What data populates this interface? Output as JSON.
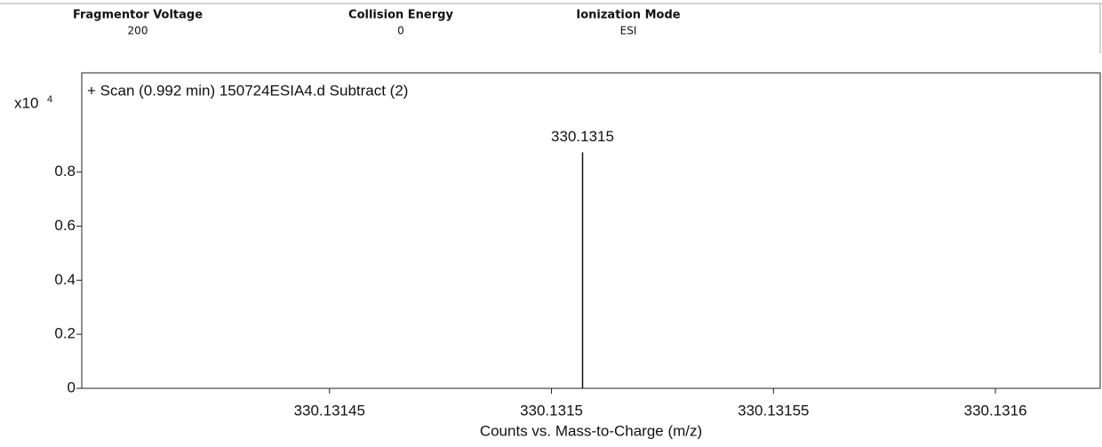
{
  "header": {
    "columns": [
      {
        "name": "Fragmentor Voltage",
        "value": "200"
      },
      {
        "name": "Collision Energy",
        "value": "0"
      },
      {
        "name": "Ionization Mode",
        "value": "ESI"
      }
    ]
  },
  "chart_data": {
    "type": "spectrum",
    "title": "+ Scan (0.992 min) 150724ESIA4.d  Subtract (2)",
    "x_label": "Counts vs. Mass-to-Charge (m/z)",
    "y_scale_label": "x10",
    "y_scale_exponent": "4",
    "x": [
      330.131507
    ],
    "values": [
      0.873
    ],
    "x_labels": [
      "330.1315"
    ],
    "color": "#111111",
    "xlim": [
      330.1313942,
      330.1316236
    ],
    "xticks": [
      330.13145,
      330.1315,
      330.13155,
      330.1316
    ],
    "ylim": [
      0,
      1.167
    ],
    "yticks": [
      0,
      0.2,
      0.4,
      0.6,
      0.8
    ]
  }
}
